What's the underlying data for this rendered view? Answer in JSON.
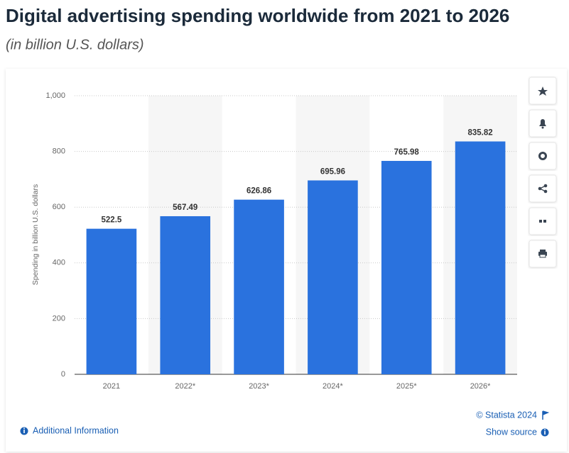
{
  "chart_data": {
    "type": "bar",
    "title": "Digital advertising spending worldwide from 2021 to 2026",
    "subtitle": "(in billion U.S. dollars)",
    "y_label": "Spending in billion U.S. dollars",
    "categories": [
      "2021",
      "2022*",
      "2023*",
      "2024*",
      "2025*",
      "2026*"
    ],
    "values": [
      522.5,
      567.49,
      626.86,
      695.96,
      765.98,
      835.82
    ],
    "color": "#2a72de",
    "ylim": [
      0,
      1000
    ],
    "yticks": [
      0,
      200,
      400,
      600,
      800,
      {
        "value": 1000,
        "label": "1,000"
      }
    ],
    "grid": true
  },
  "footer": {
    "credit": "© Statista 2024",
    "additional_info": "Additional Information",
    "show_source": "Show source"
  }
}
